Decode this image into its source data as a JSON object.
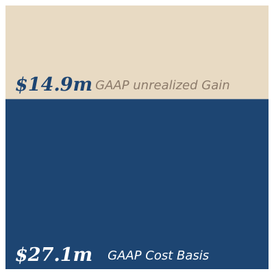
{
  "chart_data": {
    "type": "bar",
    "series": [
      {
        "name": "GAAP Cost Basis",
        "color": "#1d4572",
        "values": [
          27.1
        ],
        "value_labels": [
          "$27.1m"
        ]
      },
      {
        "name": "GAAP unrealized Gain",
        "color": "#e8dac3",
        "values": [
          14.9
        ],
        "value_labels": [
          "$14.9m"
        ]
      }
    ]
  }
}
